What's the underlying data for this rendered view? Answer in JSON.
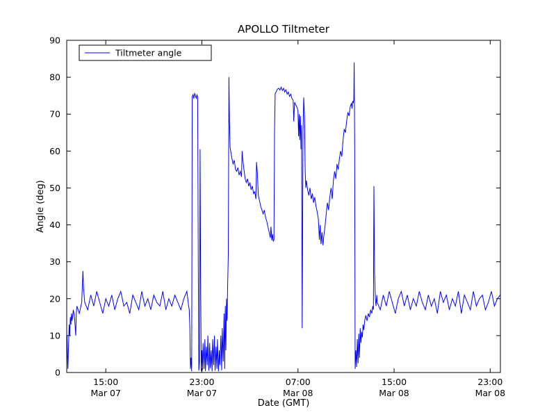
{
  "chart_data": {
    "type": "line",
    "title": "APOLLO Tiltmeter",
    "xlabel": "Date (GMT)",
    "ylabel": "Angle (deg)",
    "x_unit": "hours since Mar 07 00:00 GMT",
    "xlim": [
      11.75,
      47.85
    ],
    "ylim": [
      0,
      90
    ],
    "grid": false,
    "y_ticks": [
      0,
      10,
      20,
      30,
      40,
      50,
      60,
      70,
      80,
      90
    ],
    "x_ticks": [
      {
        "value": 15,
        "label": "15:00",
        "sublabel": "Mar 07"
      },
      {
        "value": 23,
        "label": "23:00",
        "sublabel": "Mar 07"
      },
      {
        "value": 31,
        "label": "07:00",
        "sublabel": "Mar 08"
      },
      {
        "value": 39,
        "label": "15:00",
        "sublabel": "Mar 08"
      },
      {
        "value": 47,
        "label": "23:00",
        "sublabel": "Mar 08"
      }
    ],
    "legend": {
      "position": "upper-left",
      "entries": [
        {
          "label": "Tiltmeter angle",
          "color": "#0000ff"
        }
      ]
    },
    "series": [
      {
        "name": "Tiltmeter angle",
        "color": "#0000ff",
        "points": [
          [
            11.75,
            9
          ],
          [
            11.78,
            10
          ],
          [
            11.82,
            4
          ],
          [
            11.85,
            1
          ],
          [
            11.9,
            7
          ],
          [
            11.95,
            13
          ],
          [
            12.0,
            10
          ],
          [
            12.05,
            15
          ],
          [
            12.1,
            13
          ],
          [
            12.15,
            16
          ],
          [
            12.2,
            14
          ],
          [
            12.3,
            17
          ],
          [
            12.4,
            15
          ],
          [
            12.5,
            10
          ],
          [
            12.55,
            16
          ],
          [
            12.6,
            18
          ],
          [
            12.8,
            16
          ],
          [
            13.0,
            19
          ],
          [
            13.1,
            27.5
          ],
          [
            13.15,
            23
          ],
          [
            13.25,
            19
          ],
          [
            13.5,
            17
          ],
          [
            13.75,
            21
          ],
          [
            14.0,
            18
          ],
          [
            14.25,
            22
          ],
          [
            14.5,
            19
          ],
          [
            14.75,
            16
          ],
          [
            15.0,
            20
          ],
          [
            15.25,
            18
          ],
          [
            15.5,
            21
          ],
          [
            15.75,
            17
          ],
          [
            16.0,
            20
          ],
          [
            16.25,
            22
          ],
          [
            16.5,
            18
          ],
          [
            16.75,
            19
          ],
          [
            17.0,
            16
          ],
          [
            17.25,
            21
          ],
          [
            17.5,
            19
          ],
          [
            17.75,
            17
          ],
          [
            18.0,
            22
          ],
          [
            18.25,
            18
          ],
          [
            18.5,
            20
          ],
          [
            18.75,
            17
          ],
          [
            19.0,
            21
          ],
          [
            19.25,
            19
          ],
          [
            19.5,
            18
          ],
          [
            19.75,
            22
          ],
          [
            20.0,
            17
          ],
          [
            20.25,
            20
          ],
          [
            20.5,
            18
          ],
          [
            20.75,
            21
          ],
          [
            21.0,
            19
          ],
          [
            21.25,
            17
          ],
          [
            21.5,
            20
          ],
          [
            21.75,
            22
          ],
          [
            21.9,
            18
          ],
          [
            21.95,
            17
          ],
          [
            22.0,
            12
          ],
          [
            22.05,
            1
          ],
          [
            22.1,
            4
          ],
          [
            22.15,
            0.3
          ],
          [
            22.2,
            74.8
          ],
          [
            22.27,
            75.3
          ],
          [
            22.33,
            74.2
          ],
          [
            22.4,
            75.6
          ],
          [
            22.47,
            75.0
          ],
          [
            22.53,
            74.3
          ],
          [
            22.6,
            75.2
          ],
          [
            22.65,
            74.6
          ],
          [
            22.7,
            30
          ],
          [
            22.75,
            0.5
          ],
          [
            22.8,
            3
          ],
          [
            22.85,
            60.5
          ],
          [
            22.9,
            25
          ],
          [
            22.95,
            0.4
          ],
          [
            23.0,
            6
          ],
          [
            23.05,
            0.6
          ],
          [
            23.1,
            8
          ],
          [
            23.18,
            1
          ],
          [
            23.25,
            9
          ],
          [
            23.3,
            0.4
          ],
          [
            23.38,
            7
          ],
          [
            23.45,
            2
          ],
          [
            23.5,
            10
          ],
          [
            23.58,
            0.5
          ],
          [
            23.65,
            8
          ],
          [
            23.7,
            1.2
          ],
          [
            23.78,
            6
          ],
          [
            23.85,
            0.3
          ],
          [
            23.9,
            9
          ],
          [
            23.98,
            2
          ],
          [
            24.05,
            10
          ],
          [
            24.1,
            0.5
          ],
          [
            24.18,
            7
          ],
          [
            24.25,
            1
          ],
          [
            24.3,
            9
          ],
          [
            24.38,
            0.3
          ],
          [
            24.45,
            6
          ],
          [
            24.5,
            2
          ],
          [
            24.58,
            10
          ],
          [
            24.65,
            0.6
          ],
          [
            24.7,
            12
          ],
          [
            24.78,
            3
          ],
          [
            24.85,
            16
          ],
          [
            24.9,
            1
          ],
          [
            24.95,
            18
          ],
          [
            25.0,
            6
          ],
          [
            25.05,
            20
          ],
          [
            25.1,
            14
          ],
          [
            25.15,
            24
          ],
          [
            25.2,
            32
          ],
          [
            25.25,
            80
          ],
          [
            25.3,
            68
          ],
          [
            25.35,
            61
          ],
          [
            25.4,
            60
          ],
          [
            25.5,
            58
          ],
          [
            25.6,
            56.5
          ],
          [
            25.7,
            57.5
          ],
          [
            25.8,
            55
          ],
          [
            25.9,
            54.5
          ],
          [
            26.0,
            55.5
          ],
          [
            26.1,
            53.5
          ],
          [
            26.2,
            54.5
          ],
          [
            26.3,
            53
          ],
          [
            26.35,
            60
          ],
          [
            26.4,
            58
          ],
          [
            26.5,
            55
          ],
          [
            26.6,
            52.5
          ],
          [
            26.7,
            51.5
          ],
          [
            26.8,
            52.5
          ],
          [
            26.9,
            50.5
          ],
          [
            27.0,
            51.5
          ],
          [
            27.1,
            49.5
          ],
          [
            27.2,
            50.5
          ],
          [
            27.3,
            48.5
          ],
          [
            27.4,
            49
          ],
          [
            27.5,
            47
          ],
          [
            27.55,
            57
          ],
          [
            27.62,
            54
          ],
          [
            27.7,
            48
          ],
          [
            27.8,
            46.5
          ],
          [
            27.9,
            45
          ],
          [
            28.0,
            44
          ],
          [
            28.1,
            43
          ],
          [
            28.2,
            44
          ],
          [
            28.3,
            42
          ],
          [
            28.4,
            41
          ],
          [
            28.5,
            39.5
          ],
          [
            28.6,
            38
          ],
          [
            28.7,
            36.5
          ],
          [
            28.75,
            39.5
          ],
          [
            28.82,
            35.8
          ],
          [
            28.88,
            37.5
          ],
          [
            28.95,
            35.5
          ],
          [
            29.0,
            36
          ],
          [
            29.05,
            65
          ],
          [
            29.1,
            75.5
          ],
          [
            29.2,
            76.2
          ],
          [
            29.3,
            76.8
          ],
          [
            29.4,
            77
          ],
          [
            29.5,
            76.5
          ],
          [
            29.6,
            77.3
          ],
          [
            29.7,
            76.4
          ],
          [
            29.8,
            77
          ],
          [
            29.9,
            76
          ],
          [
            30.0,
            76.6
          ],
          [
            30.1,
            75.4
          ],
          [
            30.2,
            76
          ],
          [
            30.3,
            74.8
          ],
          [
            30.4,
            75.4
          ],
          [
            30.5,
            74.2
          ],
          [
            30.6,
            73.8
          ],
          [
            30.65,
            68
          ],
          [
            30.72,
            73.2
          ],
          [
            30.8,
            72.6
          ],
          [
            30.9,
            72
          ],
          [
            31.0,
            71
          ],
          [
            31.05,
            64
          ],
          [
            31.1,
            70
          ],
          [
            31.15,
            63
          ],
          [
            31.2,
            69.5
          ],
          [
            31.25,
            60.5
          ],
          [
            31.3,
            67
          ],
          [
            31.35,
            12
          ],
          [
            31.42,
            65
          ],
          [
            31.48,
            74.5
          ],
          [
            31.55,
            69
          ],
          [
            31.6,
            55
          ],
          [
            31.65,
            50
          ],
          [
            31.7,
            52
          ],
          [
            31.8,
            49.5
          ],
          [
            31.9,
            48
          ],
          [
            32.0,
            50
          ],
          [
            32.1,
            47
          ],
          [
            32.2,
            48.5
          ],
          [
            32.3,
            46
          ],
          [
            32.4,
            47.5
          ],
          [
            32.5,
            45
          ],
          [
            32.6,
            43.5
          ],
          [
            32.7,
            41.5
          ],
          [
            32.78,
            36
          ],
          [
            32.85,
            40
          ],
          [
            32.92,
            34.8
          ],
          [
            33.0,
            38
          ],
          [
            33.08,
            34.5
          ],
          [
            33.15,
            37
          ],
          [
            33.25,
            39.5
          ],
          [
            33.35,
            43
          ],
          [
            33.45,
            46
          ],
          [
            33.55,
            44
          ],
          [
            33.65,
            47.5
          ],
          [
            33.75,
            50
          ],
          [
            33.85,
            47
          ],
          [
            33.95,
            52
          ],
          [
            34.05,
            54.5
          ],
          [
            34.15,
            52.5
          ],
          [
            34.25,
            56.5
          ],
          [
            34.35,
            55
          ],
          [
            34.45,
            58
          ],
          [
            34.55,
            60
          ],
          [
            34.65,
            58.5
          ],
          [
            34.75,
            63
          ],
          [
            34.85,
            66
          ],
          [
            34.95,
            65
          ],
          [
            35.05,
            68
          ],
          [
            35.15,
            70.5
          ],
          [
            35.25,
            69.5
          ],
          [
            35.35,
            72
          ],
          [
            35.45,
            73
          ],
          [
            35.5,
            71.5
          ],
          [
            35.55,
            73.5
          ],
          [
            35.6,
            73
          ],
          [
            35.65,
            74
          ],
          [
            35.68,
            84
          ],
          [
            35.72,
            62
          ],
          [
            35.76,
            1
          ],
          [
            35.82,
            6
          ],
          [
            35.88,
            1.5
          ],
          [
            35.94,
            9
          ],
          [
            36.0,
            2.5
          ],
          [
            36.06,
            10.5
          ],
          [
            36.12,
            4
          ],
          [
            36.18,
            12
          ],
          [
            36.24,
            8
          ],
          [
            36.3,
            11
          ],
          [
            36.36,
            9.5
          ],
          [
            36.42,
            13
          ],
          [
            36.48,
            11.5
          ],
          [
            36.55,
            14
          ],
          [
            36.65,
            15.5
          ],
          [
            36.75,
            14
          ],
          [
            36.85,
            16
          ],
          [
            36.95,
            15
          ],
          [
            37.05,
            17
          ],
          [
            37.15,
            16
          ],
          [
            37.22,
            18
          ],
          [
            37.28,
            17
          ],
          [
            37.32,
            50.5
          ],
          [
            37.38,
            27
          ],
          [
            37.44,
            20
          ],
          [
            37.5,
            18
          ],
          [
            37.56,
            21
          ],
          [
            37.6,
            19
          ],
          [
            37.85,
            17
          ],
          [
            38.1,
            21
          ],
          [
            38.35,
            18
          ],
          [
            38.6,
            22
          ],
          [
            38.85,
            19
          ],
          [
            39.1,
            16
          ],
          [
            39.35,
            20
          ],
          [
            39.6,
            22
          ],
          [
            39.85,
            18
          ],
          [
            40.1,
            21
          ],
          [
            40.35,
            17
          ],
          [
            40.6,
            20
          ],
          [
            40.85,
            18
          ],
          [
            41.1,
            22
          ],
          [
            41.35,
            19
          ],
          [
            41.6,
            17
          ],
          [
            41.85,
            21
          ],
          [
            42.1,
            18
          ],
          [
            42.35,
            20
          ],
          [
            42.6,
            16
          ],
          [
            42.85,
            22
          ],
          [
            43.1,
            19
          ],
          [
            43.35,
            21
          ],
          [
            43.6,
            17
          ],
          [
            43.85,
            20
          ],
          [
            44.1,
            18
          ],
          [
            44.35,
            22
          ],
          [
            44.6,
            16
          ],
          [
            44.85,
            21
          ],
          [
            45.1,
            19
          ],
          [
            45.35,
            17
          ],
          [
            45.6,
            22
          ],
          [
            45.85,
            18
          ],
          [
            46.1,
            20
          ],
          [
            46.35,
            21
          ],
          [
            46.6,
            17
          ],
          [
            46.85,
            19
          ],
          [
            47.1,
            22
          ],
          [
            47.35,
            18
          ],
          [
            47.6,
            20
          ],
          [
            47.83,
            21
          ]
        ]
      }
    ]
  }
}
